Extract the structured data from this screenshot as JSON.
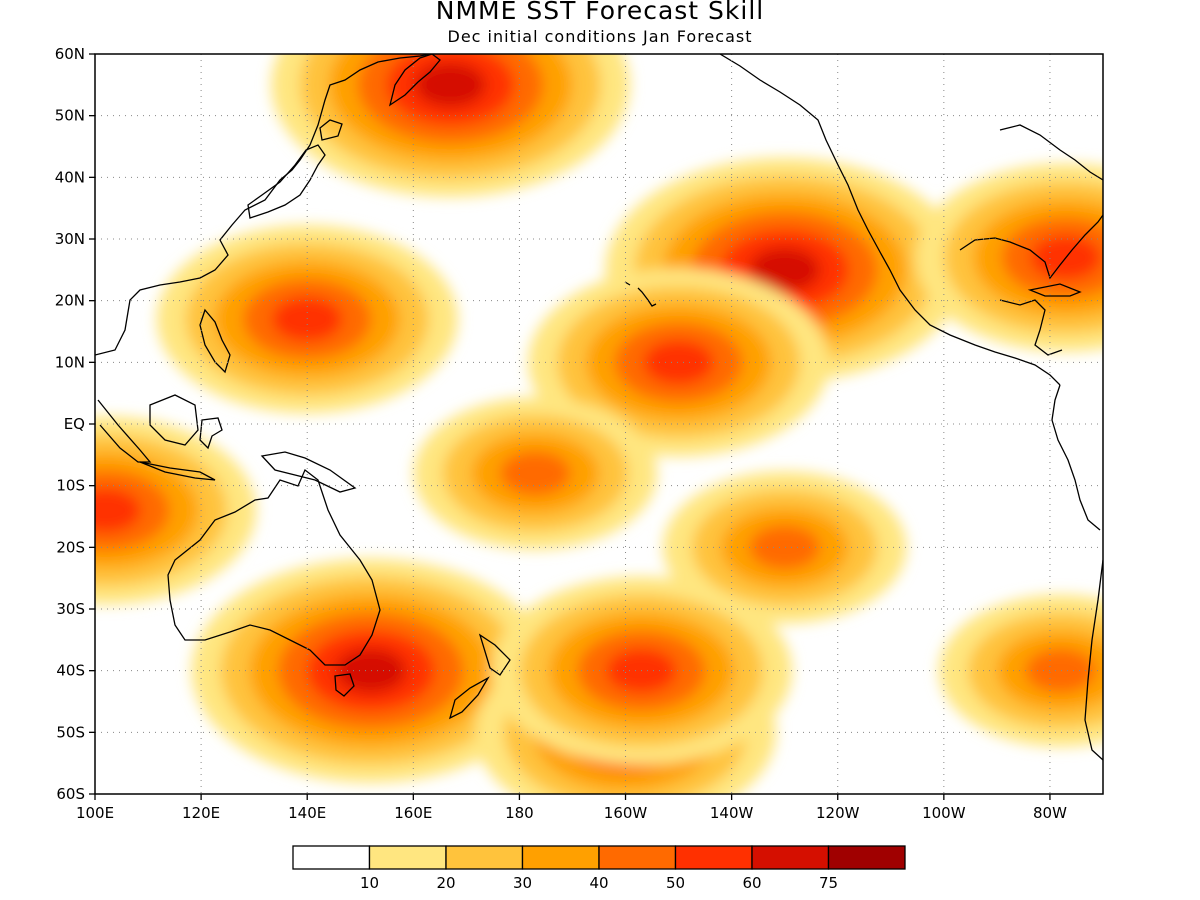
{
  "title": "NMME SST Forecast Skill",
  "subtitle": "Dec initial conditions  Jan Forecast",
  "chart_data": {
    "type": "heatmap",
    "title": "NMME SST Forecast Skill",
    "subtitle": "Dec initial conditions  Jan Forecast",
    "x_ticks": [
      "100E",
      "120E",
      "140E",
      "160E",
      "180",
      "160W",
      "140W",
      "120W",
      "100W",
      "80W"
    ],
    "y_ticks": [
      "60N",
      "50N",
      "40N",
      "30N",
      "20N",
      "10N",
      "EQ",
      "10S",
      "20S",
      "30S",
      "40S",
      "50S",
      "60S"
    ],
    "lon_range": [
      100,
      290
    ],
    "lat_range": [
      -60,
      60
    ],
    "grid": true,
    "colorbar": {
      "levels": [
        "10",
        "20",
        "30",
        "40",
        "50",
        "60",
        "75"
      ],
      "colors": [
        "#ffffff",
        "#ffe680",
        "#ffc33c",
        "#ffa000",
        "#ff6a00",
        "#ff3000",
        "#d50f00",
        "#a00000"
      ]
    },
    "high_skill_regions": [
      {
        "lon": 167,
        "lat": 55,
        "level": 6
      },
      {
        "lon": 230,
        "lat": 25,
        "level": 6
      },
      {
        "lon": 210,
        "lat": 10,
        "level": 5
      },
      {
        "lon": 140,
        "lat": 17,
        "level": 5
      },
      {
        "lon": 152,
        "lat": -40,
        "level": 6
      },
      {
        "lon": 200,
        "lat": -50,
        "level": 5
      },
      {
        "lon": 203,
        "lat": -40,
        "level": 5
      },
      {
        "lon": 283,
        "lat": 27,
        "level": 5
      },
      {
        "lon": 102,
        "lat": -14,
        "level": 5
      },
      {
        "lon": 282,
        "lat": -40,
        "level": 4
      },
      {
        "lon": 230,
        "lat": -20,
        "level": 4
      },
      {
        "lon": 183,
        "lat": -8,
        "level": 4
      }
    ]
  }
}
